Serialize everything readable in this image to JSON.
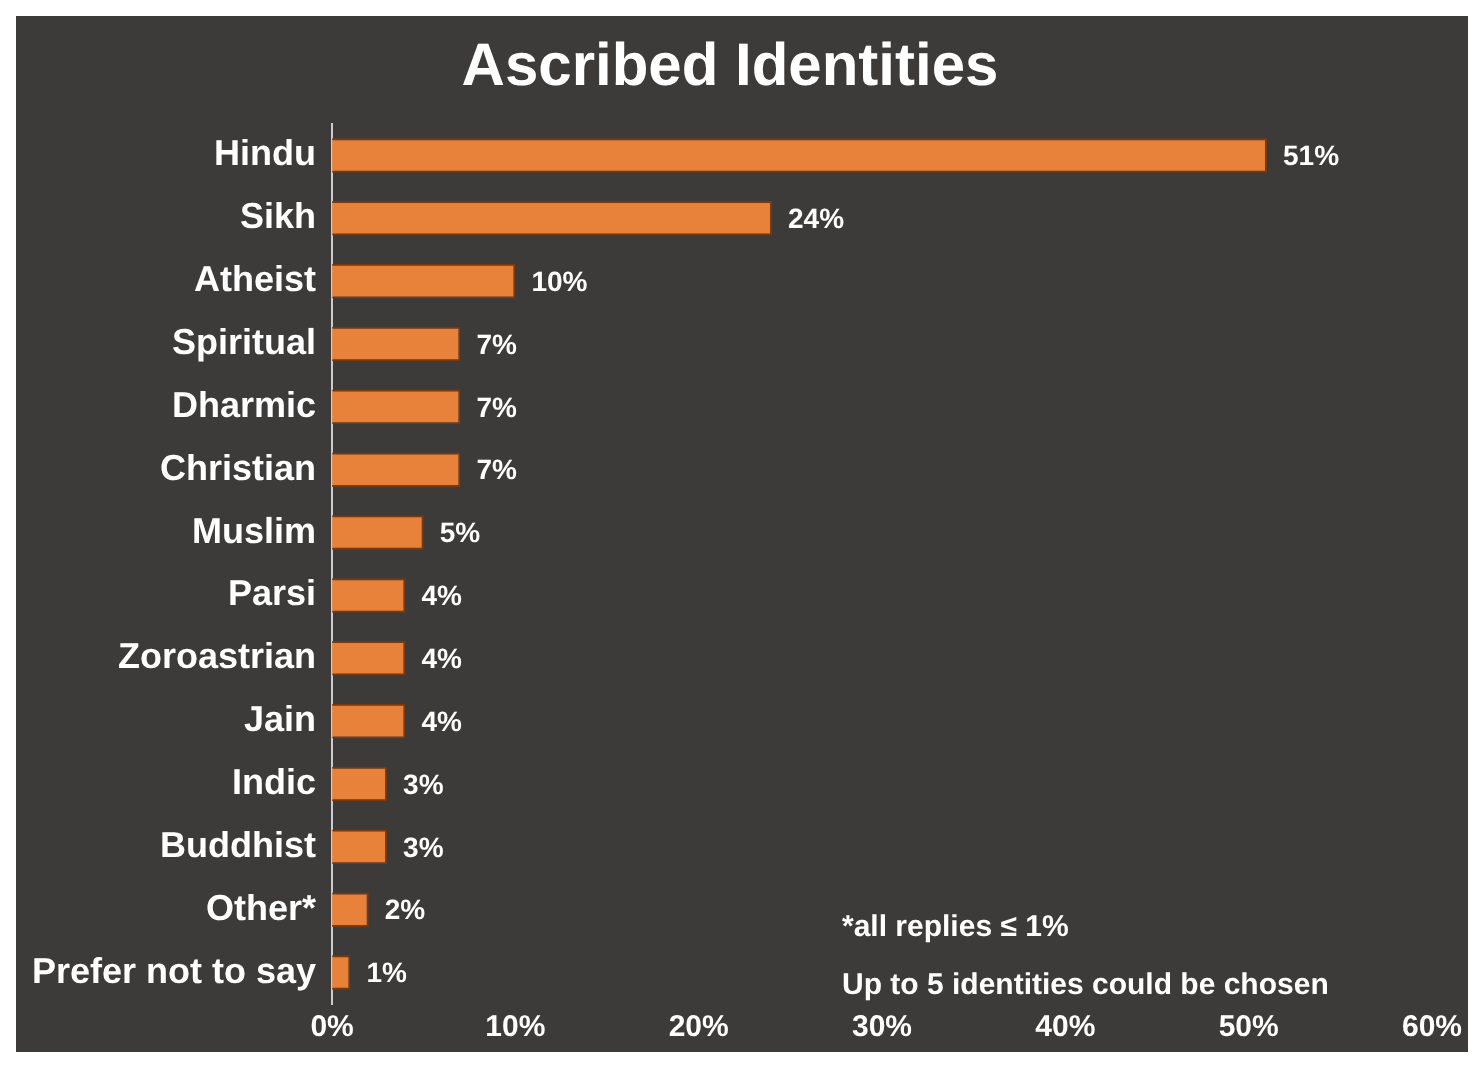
{
  "chart_data": {
    "type": "bar",
    "orientation": "horizontal",
    "title": "Ascribed Identities",
    "categories": [
      "Hindu",
      "Sikh",
      "Atheist",
      "Spiritual",
      "Dharmic",
      "Christian",
      "Muslim",
      "Parsi",
      "Zoroastrian",
      "Jain",
      "Indic",
      "Buddhist",
      "Other*",
      "Prefer not to say"
    ],
    "values": [
      51,
      24,
      10,
      7,
      7,
      7,
      5,
      4,
      4,
      4,
      3,
      3,
      2,
      1
    ],
    "value_labels": [
      "51%",
      "24%",
      "10%",
      "7%",
      "7%",
      "7%",
      "5%",
      "4%",
      "4%",
      "4%",
      "3%",
      "3%",
      "2%",
      "1%"
    ],
    "color": "#e8823a",
    "xlim": [
      0,
      60
    ],
    "xticks": [
      {
        "value": 0,
        "label": "0%"
      },
      {
        "value": 10,
        "label": "10%"
      },
      {
        "value": 20,
        "label": "20%"
      },
      {
        "value": 30,
        "label": "30%"
      },
      {
        "value": 40,
        "label": "40%"
      },
      {
        "value": 50,
        "label": "50%"
      },
      {
        "value": 60,
        "label": "60%"
      }
    ],
    "grid": false,
    "legend": false,
    "annotations": [
      "*all replies ≤ 1%",
      "Up to 5 identities could be chosen"
    ]
  }
}
